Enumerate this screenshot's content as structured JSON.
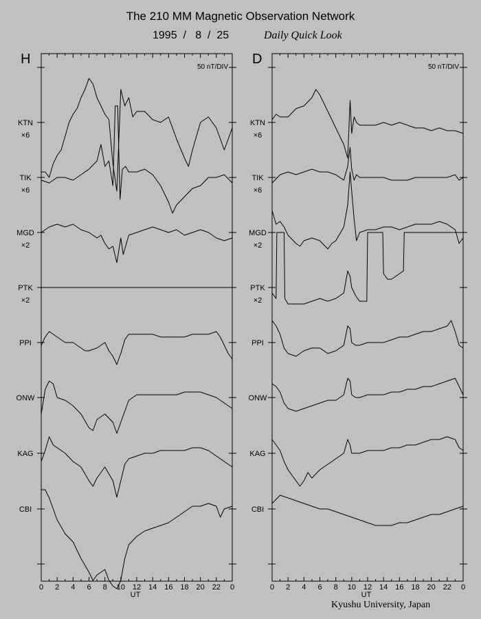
{
  "header": {
    "title": "The 210 MM Magnetic Observation Network",
    "date": "1995  /   8  /  25",
    "subtitle": "Daily Quick Look"
  },
  "footer": {
    "credit": "Kyushu University, Japan"
  },
  "chart_data": [
    {
      "type": "line",
      "panel_label": "H",
      "scale_label": "50 nT/DIV",
      "xlabel": "UT",
      "xlim": [
        0,
        24
      ],
      "x_tick_labels": [
        "0",
        "2",
        "4",
        "6",
        "8",
        "10",
        "12",
        "14",
        "16",
        "18",
        "20",
        "22",
        "0"
      ],
      "series": [
        {
          "name": "KTN",
          "multiplier": "×6",
          "x": [
            0,
            0.5,
            1,
            1.5,
            2,
            2.5,
            3,
            3.5,
            4,
            4.5,
            5,
            5.5,
            6,
            6.5,
            7,
            7.5,
            8,
            8.5,
            9,
            9.5,
            10,
            10.5,
            11,
            11.5,
            12,
            13,
            14,
            15,
            16,
            17,
            18,
            18.5,
            19,
            20,
            21,
            22,
            23,
            23.5,
            24
          ],
          "y": [
            -1.8,
            -1.8,
            -2.0,
            -1.5,
            -1.2,
            -1.0,
            -0.5,
            0.0,
            0.3,
            0.5,
            0.9,
            1.2,
            1.6,
            1.4,
            0.9,
            0.6,
            0.3,
            0.1,
            -1.5,
            -2.5,
            1.2,
            0.6,
            0.9,
            0.2,
            0.4,
            0.4,
            0.1,
            0.0,
            0.2,
            -0.6,
            -1.3,
            -1.6,
            -1.0,
            0.0,
            0.2,
            -0.2,
            -1.0,
            -0.6,
            -0.2
          ]
        },
        {
          "name": "TIK",
          "multiplier": "×6",
          "x": [
            0,
            1,
            2,
            3,
            4,
            5,
            6,
            7,
            7.5,
            8,
            8.5,
            9,
            9.3,
            9.6,
            9.9,
            10.2,
            10.6,
            11,
            12,
            13,
            14,
            15,
            16,
            16.5,
            17,
            18,
            19,
            20,
            21,
            22,
            23,
            24
          ],
          "y": [
            -0.1,
            -0.2,
            0.0,
            0.0,
            -0.1,
            0.1,
            0.3,
            0.6,
            1.2,
            0.4,
            0.6,
            -0.3,
            2.6,
            2.6,
            -0.8,
            0.3,
            0.4,
            0.2,
            0.2,
            0.3,
            0.1,
            -0.3,
            -0.9,
            -1.3,
            -1.0,
            -0.7,
            -0.4,
            -0.3,
            0.0,
            0.0,
            0.1,
            -0.2
          ]
        },
        {
          "name": "MGD",
          "multiplier": "×2",
          "x": [
            0,
            1,
            2,
            3,
            4,
            5,
            6,
            7,
            7.5,
            8,
            8.5,
            9,
            9.5,
            10,
            10.3,
            11,
            12,
            13,
            14,
            15,
            16,
            17,
            18,
            19,
            20,
            21,
            22,
            23,
            24
          ],
          "y": [
            0.0,
            0.2,
            0.3,
            0.2,
            0.3,
            0.1,
            0.0,
            -0.2,
            -0.1,
            -0.4,
            -0.6,
            -0.5,
            -1.1,
            -0.2,
            -0.8,
            -0.1,
            0.0,
            0.1,
            0.2,
            0.1,
            0.0,
            0.1,
            -0.1,
            0.0,
            0.1,
            0.0,
            -0.2,
            -0.3,
            -0.2
          ]
        },
        {
          "name": "PTK",
          "multiplier": "×2",
          "x": [
            0,
            24
          ],
          "y": [
            0.0,
            0.0
          ]
        },
        {
          "name": "PPI",
          "multiplier": "",
          "x": [
            0,
            0.5,
            1,
            2,
            3,
            4,
            5,
            5.5,
            6,
            7,
            8,
            8.5,
            9,
            9.5,
            10,
            10.5,
            11,
            12,
            13,
            14,
            15,
            16,
            17,
            18,
            19,
            20,
            21,
            22,
            22.5,
            23,
            23.5,
            24
          ],
          "y": [
            -0.1,
            0.2,
            0.4,
            0.2,
            0.0,
            0.0,
            -0.2,
            -0.3,
            -0.3,
            -0.2,
            0.0,
            -0.3,
            -0.5,
            -0.8,
            -0.4,
            0.1,
            0.3,
            0.3,
            0.3,
            0.3,
            0.2,
            0.2,
            0.2,
            0.2,
            0.3,
            0.3,
            0.3,
            0.4,
            0.2,
            -0.1,
            -0.4,
            -0.6
          ]
        },
        {
          "name": "ONW",
          "multiplier": "",
          "x": [
            0,
            0.5,
            1,
            1.5,
            2,
            3,
            4,
            5,
            6,
            6.5,
            7,
            8,
            9,
            9.5,
            10,
            10.5,
            11,
            12,
            13,
            14,
            15,
            16,
            17,
            18,
            19,
            20,
            21,
            22,
            23,
            24
          ],
          "y": [
            -0.6,
            0.3,
            0.6,
            0.5,
            0.0,
            -0.1,
            -0.3,
            -0.6,
            -1.1,
            -1.2,
            -0.8,
            -0.6,
            -0.9,
            -1.3,
            -0.9,
            -0.5,
            -0.1,
            0.1,
            0.1,
            0.1,
            0.1,
            0.1,
            0.1,
            0.2,
            0.2,
            0.2,
            0.1,
            0.0,
            -0.2,
            -0.4
          ]
        },
        {
          "name": "KAG",
          "multiplier": "",
          "x": [
            0,
            0.5,
            1,
            1.5,
            2,
            3,
            4,
            5,
            6,
            6.5,
            7,
            8,
            9,
            9.5,
            10,
            10.5,
            11,
            12,
            13,
            14,
            15,
            16,
            17,
            18,
            19,
            20,
            21,
            22,
            23,
            24
          ],
          "y": [
            -0.3,
            0.1,
            0.6,
            0.3,
            0.2,
            0.0,
            -0.3,
            -0.5,
            -1.0,
            -1.2,
            -0.9,
            -0.5,
            -1.0,
            -1.6,
            -1.0,
            -0.4,
            -0.2,
            -0.1,
            0.0,
            0.0,
            0.1,
            0.1,
            0.1,
            0.1,
            0.2,
            0.2,
            0.1,
            -0.1,
            -0.3,
            -0.5
          ]
        },
        {
          "name": "CBI",
          "multiplier": "",
          "x": [
            0,
            0.5,
            1,
            1.5,
            2,
            3,
            4,
            5,
            6,
            6.5,
            7,
            8,
            8.5,
            9,
            9.5,
            10,
            10.5,
            11,
            12,
            13,
            14,
            15,
            16,
            17,
            18,
            19,
            20,
            21,
            22,
            22.5,
            23,
            24
          ],
          "y": [
            0.7,
            0.7,
            0.4,
            0.0,
            -0.4,
            -0.9,
            -1.2,
            -1.8,
            -2.3,
            -2.6,
            -2.4,
            -2.2,
            -2.6,
            -2.8,
            -2.9,
            -2.6,
            -1.8,
            -1.3,
            -1.0,
            -0.8,
            -0.7,
            -0.6,
            -0.5,
            -0.3,
            -0.1,
            0.1,
            0.1,
            0.2,
            0.1,
            -0.3,
            0.0,
            0.1
          ]
        }
      ]
    },
    {
      "type": "line",
      "panel_label": "D",
      "scale_label": "50 nT/DIV",
      "xlabel": "UT",
      "xlim": [
        0,
        24
      ],
      "x_tick_labels": [
        "0",
        "2",
        "4",
        "6",
        "8",
        "10",
        "12",
        "14",
        "16",
        "18",
        "20",
        "22",
        "0"
      ],
      "series": [
        {
          "name": "KTN",
          "multiplier": "×6",
          "x": [
            0,
            0.5,
            1,
            2,
            3,
            4,
            5,
            5.5,
            6,
            7,
            8,
            9,
            9.5,
            9.8,
            10,
            10.3,
            10.6,
            11,
            12,
            13,
            14,
            15,
            16,
            17,
            18,
            19,
            20,
            21,
            22,
            23,
            24
          ],
          "y": [
            0.1,
            0.3,
            0.2,
            0.2,
            0.5,
            0.6,
            0.9,
            1.2,
            1.0,
            0.4,
            -0.2,
            -0.8,
            -1.3,
            0.8,
            -0.4,
            0.2,
            0.0,
            -0.1,
            -0.1,
            -0.1,
            0.0,
            -0.1,
            0.0,
            -0.1,
            -0.2,
            -0.2,
            -0.3,
            -0.2,
            -0.3,
            -0.3,
            -0.4
          ]
        },
        {
          "name": "TIK",
          "multiplier": "×6",
          "x": [
            0,
            1,
            2,
            3,
            4,
            5,
            6,
            7,
            8,
            9,
            9.5,
            9.8,
            10,
            10.3,
            10.6,
            11,
            12,
            13,
            14,
            15,
            16,
            17,
            18,
            19,
            20,
            21,
            22,
            23,
            23.5,
            24
          ],
          "y": [
            -0.2,
            0.1,
            0.2,
            0.1,
            0.2,
            0.3,
            0.2,
            0.2,
            0.1,
            -0.1,
            0.4,
            1.1,
            0.3,
            -0.1,
            0.1,
            0.0,
            0.0,
            0.0,
            0.0,
            -0.1,
            -0.1,
            -0.1,
            0.0,
            0.0,
            0.0,
            0.0,
            0.0,
            0.1,
            -0.1,
            0.0
          ]
        },
        {
          "name": "MGD",
          "multiplier": "×2",
          "x": [
            0,
            0.5,
            1,
            1.5,
            2,
            3,
            3.5,
            4,
            5,
            6,
            7,
            7.5,
            8,
            9,
            9.5,
            9.8,
            10,
            10.3,
            10.6,
            11,
            12,
            13,
            14,
            15,
            16,
            17,
            18,
            19,
            20,
            21,
            22,
            23,
            23.5,
            24
          ],
          "y": [
            0.8,
            0.3,
            0.4,
            0.2,
            -0.1,
            -0.4,
            -0.5,
            -0.3,
            -0.2,
            -0.3,
            -0.6,
            -0.4,
            -0.3,
            0.2,
            1.0,
            2.2,
            1.5,
            0.5,
            -0.3,
            0.0,
            0.1,
            0.1,
            0.2,
            0.2,
            0.1,
            0.2,
            0.3,
            0.3,
            0.3,
            0.4,
            0.3,
            0.1,
            -0.4,
            -0.2
          ]
        },
        {
          "name": "PTK",
          "multiplier": "×2",
          "x": [
            0,
            0.5,
            0.6,
            1.5,
            1.6,
            2,
            3,
            4,
            5,
            6,
            7,
            8,
            9,
            9.5,
            9.8,
            10,
            10.5,
            11,
            11.9,
            12,
            13,
            13.9,
            14,
            14.5,
            15,
            15.5,
            16,
            16.5,
            16.6,
            20,
            24
          ],
          "y": [
            -0.2,
            -0.4,
            2.0,
            2.0,
            -0.4,
            -0.6,
            -0.6,
            -0.6,
            -0.5,
            -0.4,
            -0.5,
            -0.4,
            -0.2,
            0.6,
            0.4,
            0.0,
            -0.3,
            -0.5,
            -0.5,
            2.0,
            2.0,
            2.0,
            0.5,
            0.3,
            0.3,
            0.4,
            0.5,
            0.6,
            2.0,
            2.0,
            2.0
          ]
        },
        {
          "name": "PPI",
          "multiplier": "",
          "x": [
            0,
            0.5,
            1,
            1.5,
            2,
            3,
            4,
            5,
            6,
            7,
            8,
            9,
            9.5,
            9.8,
            10,
            10.5,
            11,
            12,
            13,
            14,
            15,
            16,
            17,
            18,
            19,
            20,
            21,
            22,
            22.5,
            23,
            23.5,
            24
          ],
          "y": [
            0.8,
            0.6,
            0.3,
            -0.2,
            -0.4,
            -0.5,
            -0.3,
            -0.2,
            -0.2,
            -0.4,
            -0.3,
            -0.1,
            0.6,
            0.5,
            0.0,
            -0.1,
            -0.1,
            0.0,
            0.0,
            0.0,
            0.1,
            0.2,
            0.2,
            0.3,
            0.4,
            0.4,
            0.5,
            0.6,
            0.8,
            0.4,
            -0.1,
            -0.2
          ]
        },
        {
          "name": "ONW",
          "multiplier": "",
          "x": [
            0,
            0.5,
            1,
            1.5,
            2,
            3,
            4,
            5,
            6,
            7,
            8,
            9,
            9.5,
            9.8,
            10,
            10.5,
            11,
            12,
            13,
            14,
            15,
            16,
            17,
            18,
            19,
            20,
            21,
            22,
            23,
            23.5,
            24
          ],
          "y": [
            0.5,
            0.4,
            0.2,
            -0.2,
            -0.4,
            -0.5,
            -0.4,
            -0.3,
            -0.2,
            -0.1,
            -0.1,
            0.1,
            0.7,
            0.6,
            0.1,
            0.0,
            0.0,
            0.1,
            0.1,
            0.1,
            0.2,
            0.2,
            0.3,
            0.3,
            0.4,
            0.4,
            0.5,
            0.6,
            0.7,
            0.4,
            0.1
          ]
        },
        {
          "name": "KAG",
          "multiplier": "",
          "x": [
            0,
            0.5,
            1,
            1.5,
            2,
            3,
            3.5,
            4,
            4.5,
            5,
            6,
            7,
            8,
            9,
            9.5,
            9.8,
            10,
            10.5,
            11,
            12,
            13,
            14,
            15,
            16,
            17,
            18,
            19,
            20,
            21,
            22,
            23,
            23.5,
            24
          ],
          "y": [
            0.5,
            0.3,
            0.1,
            -0.3,
            -0.6,
            -1.0,
            -1.2,
            -1.0,
            -0.7,
            -0.9,
            -0.6,
            -0.4,
            -0.2,
            0.0,
            0.5,
            0.3,
            0.0,
            0.0,
            0.0,
            0.1,
            0.1,
            0.1,
            0.2,
            0.2,
            0.3,
            0.3,
            0.4,
            0.5,
            0.5,
            0.6,
            0.5,
            0.2,
            0.1
          ]
        },
        {
          "name": "CBI",
          "multiplier": "",
          "x": [
            0,
            1,
            2,
            3,
            4,
            5,
            6,
            7,
            8,
            9,
            10,
            11,
            12,
            13,
            14,
            15,
            16,
            17,
            18,
            19,
            20,
            21,
            22,
            23,
            24
          ],
          "y": [
            0.2,
            0.5,
            0.4,
            0.3,
            0.2,
            0.1,
            0.0,
            0.0,
            -0.1,
            -0.2,
            -0.3,
            -0.4,
            -0.5,
            -0.6,
            -0.6,
            -0.6,
            -0.5,
            -0.5,
            -0.4,
            -0.3,
            -0.2,
            -0.2,
            -0.1,
            0.0,
            0.1
          ]
        }
      ]
    }
  ]
}
